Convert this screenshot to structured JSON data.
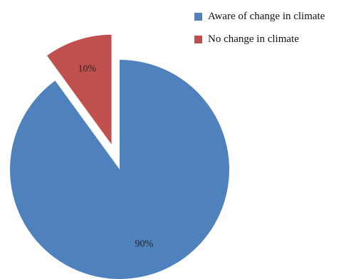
{
  "chart_data": {
    "type": "pie",
    "slices": [
      {
        "name": "Aware of change in climate",
        "value": 90,
        "label": "90%",
        "color": "#4F81BD"
      },
      {
        "name": "No change in climate",
        "value": 10,
        "label": "10%",
        "color": "#C0504D"
      }
    ],
    "exploded_slice": "No change in climate",
    "legend_position": "top-right",
    "start_angle": "12 o'clock",
    "direction": "clockwise"
  }
}
